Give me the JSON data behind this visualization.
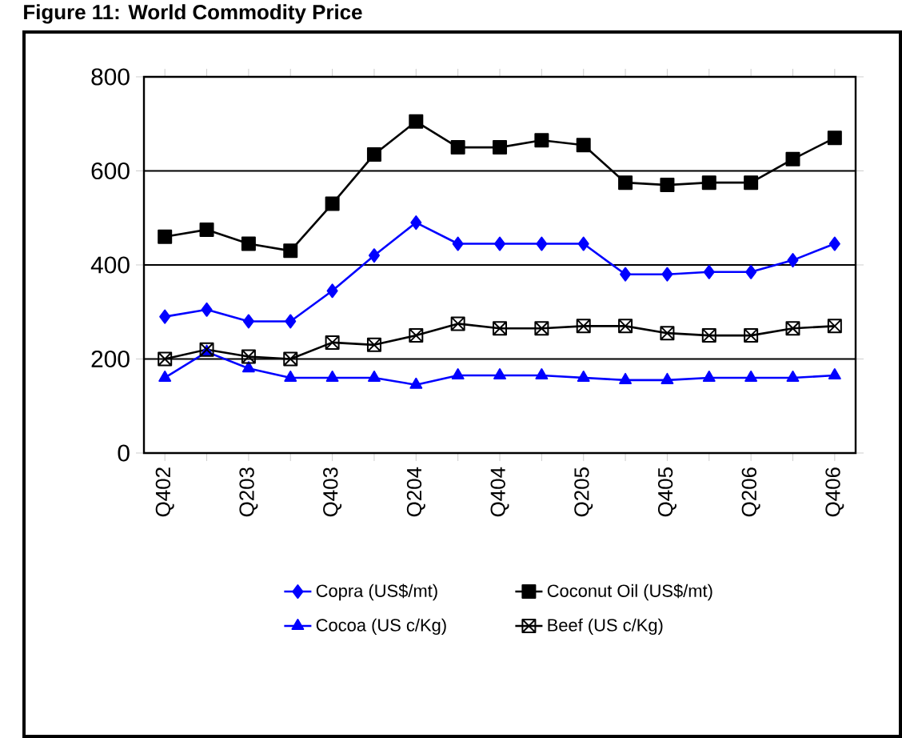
{
  "chart_data": {
    "type": "line",
    "title": "Figure 11:  World Commodity Price",
    "categories": [
      "Q402",
      null,
      "Q203",
      null,
      "Q403",
      null,
      "Q204",
      null,
      "Q404",
      null,
      "Q205",
      null,
      "Q405",
      null,
      "Q206",
      null,
      "Q406"
    ],
    "series": [
      {
        "name": "Copra (US$/mt)",
        "color": "#0000ff",
        "marker": "diamond",
        "values": [
          290,
          305,
          280,
          280,
          345,
          420,
          490,
          445,
          445,
          445,
          445,
          380,
          380,
          385,
          385,
          410,
          445
        ]
      },
      {
        "name": "Coconut Oil (US$/mt)",
        "color": "#000000",
        "marker": "square",
        "values": [
          460,
          475,
          445,
          430,
          530,
          635,
          705,
          650,
          650,
          665,
          655,
          575,
          570,
          575,
          575,
          625,
          670
        ]
      },
      {
        "name": "Cocoa (US c/Kg)",
        "color": "#0000ff",
        "marker": "triangle",
        "values": [
          160,
          215,
          180,
          160,
          160,
          160,
          145,
          165,
          165,
          165,
          160,
          155,
          155,
          160,
          160,
          160,
          165
        ]
      },
      {
        "name": "Beef (US c/Kg)",
        "color": "#000000",
        "marker": "cross",
        "values": [
          200,
          220,
          205,
          200,
          235,
          230,
          250,
          275,
          265,
          265,
          270,
          270,
          255,
          250,
          250,
          265,
          270
        ]
      }
    ],
    "ylim": [
      0,
      800
    ],
    "yticks": [
      0,
      200,
      400,
      600,
      800
    ],
    "grid": "y",
    "legend": "bottom"
  }
}
